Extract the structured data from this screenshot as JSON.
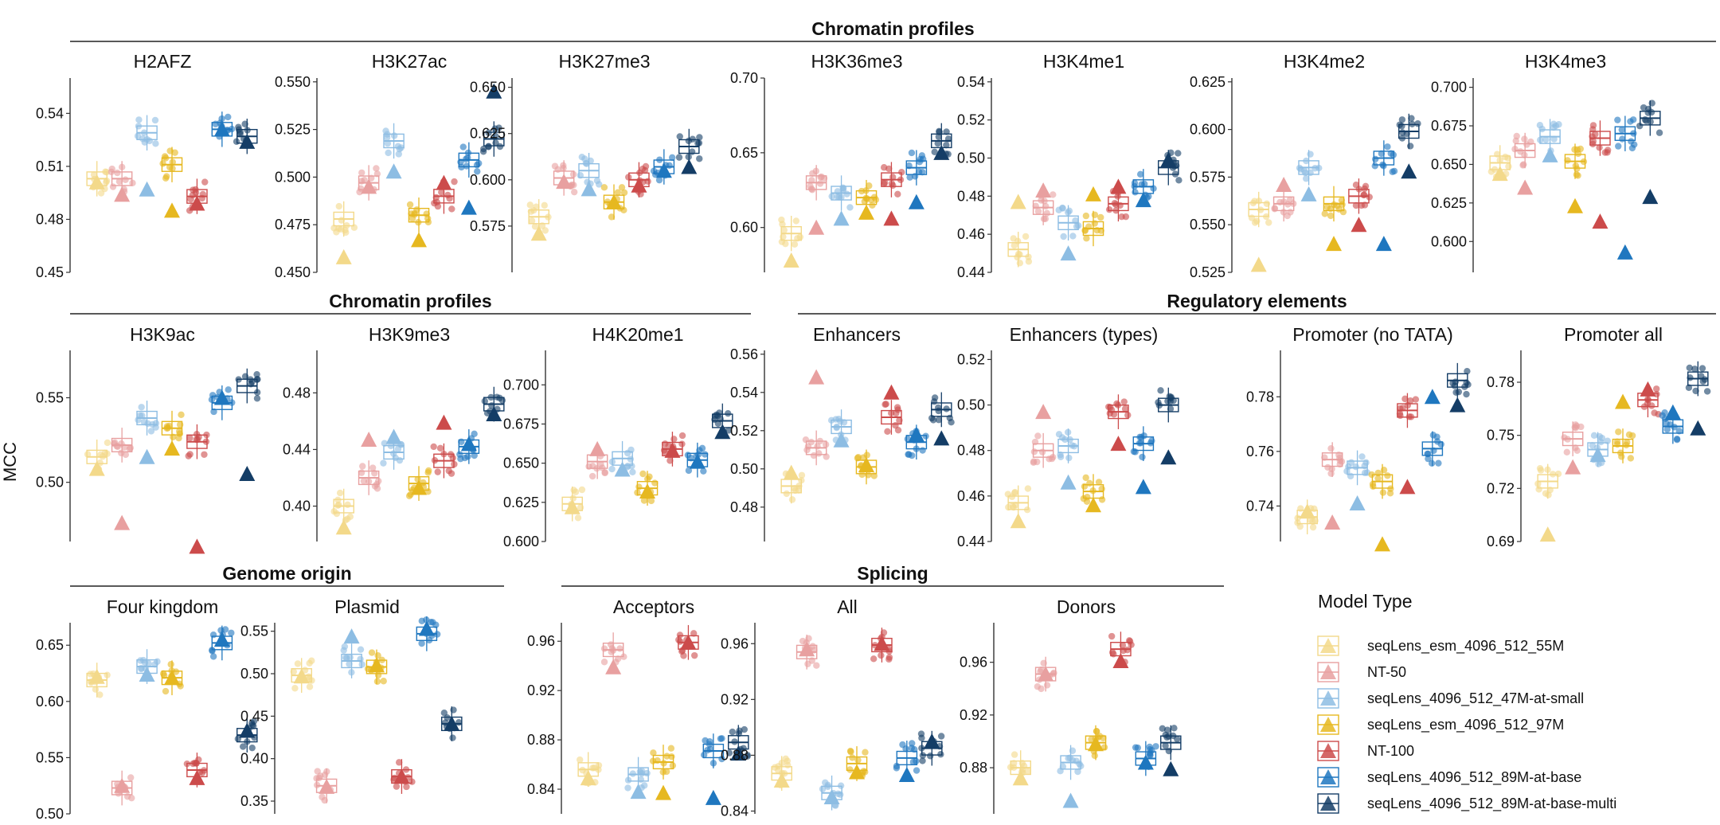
{
  "ylabel": "MCC",
  "legend": {
    "title": "Model Type",
    "items": [
      {
        "label": "seqLens_esm_4096_512_55M",
        "color": "#F3D98A"
      },
      {
        "label": "NT-50",
        "color": "#E8A0A0"
      },
      {
        "label": "seqLens_4096_512_47M-at-small",
        "color": "#8DBDE3"
      },
      {
        "label": "seqLens_esm_4096_512_97M",
        "color": "#E6B820"
      },
      {
        "label": "NT-100",
        "color": "#CC4B4B"
      },
      {
        "label": "seqLens_4096_512_89M-at-base",
        "color": "#1F77BF"
      },
      {
        "label": "seqLens_4096_512_89M-at-base-multi",
        "color": "#143D66"
      }
    ]
  },
  "groups": [
    {
      "label": "Chromatin profiles",
      "row": 0
    },
    {
      "label": "Chromatin profiles",
      "row": 1
    },
    {
      "label": "Regulatory elements",
      "row": 1
    },
    {
      "label": "Genome origin",
      "row": 2
    },
    {
      "label": "Splicing",
      "row": 2
    }
  ],
  "chart_data": {
    "type": "box",
    "panels": [
      {
        "name": "H2AFZ",
        "yticks": [
          "0.45",
          "0.48",
          "0.51",
          "0.54"
        ],
        "ylim": [
          0.45,
          0.56
        ],
        "values": [
          0.503,
          0.503,
          0.529,
          0.511,
          0.493,
          0.531,
          0.527
        ],
        "markers": [
          0.501,
          0.494,
          0.497,
          0.485,
          0.489,
          0.531,
          0.524
        ]
      },
      {
        "name": "H3K27ac",
        "yticks": [
          "0.450",
          "0.475",
          "0.500",
          "0.525",
          "0.550"
        ],
        "ylim": [
          0.45,
          0.552
        ],
        "values": [
          0.478,
          0.497,
          0.519,
          0.48,
          0.49,
          0.509,
          0.52
        ],
        "markers": [
          0.458,
          0.495,
          0.503,
          0.467,
          0.497,
          0.484,
          0.545
        ]
      },
      {
        "name": "H3K27me3",
        "yticks": [
          "0.575",
          "0.600",
          "0.625",
          "0.650"
        ],
        "ylim": [
          0.55,
          0.655
        ],
        "values": [
          0.58,
          0.601,
          0.605,
          0.588,
          0.6,
          0.607,
          0.618
        ],
        "markers": [
          0.571,
          0.599,
          0.595,
          0.588,
          0.597,
          0.605,
          0.607
        ]
      },
      {
        "name": "H3K36me3",
        "yticks": [
          "0.60",
          "0.65",
          "0.70"
        ],
        "ylim": [
          0.57,
          0.7
        ],
        "values": [
          0.596,
          0.63,
          0.623,
          0.62,
          0.632,
          0.64,
          0.658
        ],
        "markers": [
          0.578,
          0.6,
          0.606,
          0.61,
          0.606,
          0.617,
          0.65
        ]
      },
      {
        "name": "H3K4me1",
        "yticks": [
          "0.44",
          "0.46",
          "0.48",
          "0.50",
          "0.52",
          "0.54"
        ],
        "ylim": [
          0.44,
          0.542
        ],
        "values": [
          0.452,
          0.474,
          0.466,
          0.463,
          0.476,
          0.485,
          0.495
        ],
        "markers": [
          0.477,
          0.483,
          0.45,
          0.481,
          0.485,
          0.478,
          0.499
        ]
      },
      {
        "name": "H3K4me2",
        "yticks": [
          "0.525",
          "0.550",
          "0.575",
          "0.600",
          "0.625"
        ],
        "ylim": [
          0.525,
          0.627
        ],
        "values": [
          0.558,
          0.561,
          0.58,
          0.561,
          0.565,
          0.585,
          0.599
        ],
        "markers": [
          0.529,
          0.571,
          0.566,
          0.54,
          0.55,
          0.54,
          0.578
        ]
      },
      {
        "name": "H3K4me3",
        "yticks": [
          "0.600",
          "0.625",
          "0.650",
          "0.675",
          "0.700"
        ],
        "ylim": [
          0.58,
          0.706
        ],
        "values": [
          0.651,
          0.659,
          0.668,
          0.652,
          0.667,
          0.67,
          0.68
        ],
        "markers": [
          0.644,
          0.635,
          0.656,
          0.623,
          0.613,
          0.593,
          0.629
        ]
      },
      {
        "name": "H3K9ac",
        "yticks": [
          "0.50",
          "0.55"
        ],
        "ylim": [
          0.465,
          0.578
        ],
        "values": [
          0.515,
          0.522,
          0.538,
          0.532,
          0.524,
          0.547,
          0.557
        ],
        "markers": [
          0.508,
          0.476,
          0.515,
          0.52,
          0.462,
          0.55,
          0.505
        ]
      },
      {
        "name": "H3K9me3",
        "yticks": [
          "0.40",
          "0.44",
          "0.48"
        ],
        "ylim": [
          0.375,
          0.51
        ],
        "values": [
          0.4,
          0.42,
          0.438,
          0.416,
          0.432,
          0.442,
          0.472
        ],
        "markers": [
          0.385,
          0.447,
          0.449,
          0.413,
          0.459,
          0.444,
          0.465
        ]
      },
      {
        "name": "H4K20me1",
        "yticks": [
          "0.600",
          "0.625",
          "0.650",
          "0.675",
          "0.700"
        ],
        "ylim": [
          0.6,
          0.722
        ],
        "values": [
          0.624,
          0.651,
          0.653,
          0.634,
          0.659,
          0.652,
          0.677
        ],
        "markers": [
          0.622,
          0.659,
          0.646,
          0.632,
          0.658,
          0.651,
          0.67
        ]
      },
      {
        "name": "Enhancers",
        "yticks": [
          "0.48",
          "0.50",
          "0.52",
          "0.54",
          "0.56"
        ],
        "ylim": [
          0.462,
          0.562
        ],
        "values": [
          0.491,
          0.511,
          0.522,
          0.501,
          0.527,
          0.514,
          0.531
        ],
        "markers": [
          0.498,
          0.548,
          0.515,
          0.502,
          0.54,
          0.518,
          0.516
        ]
      },
      {
        "name": "Enhancers (types)",
        "yticks": [
          "0.44",
          "0.46",
          "0.48",
          "0.50",
          "0.52"
        ],
        "ylim": [
          0.44,
          0.524
        ],
        "values": [
          0.457,
          0.48,
          0.482,
          0.462,
          0.497,
          0.483,
          0.5
        ],
        "markers": [
          0.449,
          0.497,
          0.466,
          0.456,
          0.483,
          0.464,
          0.477
        ]
      },
      {
        "name": "Promoter (no TATA)",
        "yticks": [
          "0.74",
          "0.76",
          "0.78"
        ],
        "ylim": [
          0.727,
          0.797
        ],
        "values": [
          0.736,
          0.757,
          0.754,
          0.749,
          0.775,
          0.761,
          0.786
        ],
        "markers": [
          0.738,
          0.734,
          0.741,
          0.726,
          0.747,
          0.78,
          0.777
        ]
      },
      {
        "name": "Promoter all",
        "yticks": [
          "0.69",
          "0.72",
          "0.75",
          "0.78"
        ],
        "ylim": [
          0.69,
          0.798
        ],
        "values": [
          0.724,
          0.748,
          0.742,
          0.744,
          0.77,
          0.755,
          0.782
        ],
        "markers": [
          0.694,
          0.732,
          0.739,
          0.769,
          0.776,
          0.763,
          0.754
        ]
      },
      {
        "name": "Four kingdom",
        "yticks": [
          "0.50",
          "0.55",
          "0.60",
          "0.65"
        ],
        "ylim": [
          0.5,
          0.67
        ],
        "values": [
          0.619,
          0.523,
          0.631,
          0.621,
          0.539,
          0.652,
          0.57
        ],
        "markers": [
          0.622,
          0.525,
          0.624,
          0.621,
          0.532,
          0.655,
          0.574
        ]
      },
      {
        "name": "Plasmid",
        "yticks": [
          "0.35",
          "0.40",
          "0.45",
          "0.50",
          "0.55"
        ],
        "ylim": [
          0.335,
          0.56
        ],
        "values": [
          0.498,
          0.368,
          0.515,
          0.508,
          0.379,
          0.547,
          0.441
        ],
        "markers": [
          0.497,
          0.367,
          0.544,
          0.51,
          0.379,
          0.553,
          0.441
        ]
      },
      {
        "name": "Acceptors",
        "yticks": [
          "0.84",
          "0.88",
          "0.92",
          "0.96"
        ],
        "ylim": [
          0.82,
          0.975
        ],
        "values": [
          0.856,
          0.953,
          0.852,
          0.862,
          0.959,
          0.871,
          0.878
        ],
        "markers": [
          0.849,
          0.939,
          0.838,
          0.837,
          0.959,
          0.833,
          0.869
        ]
      },
      {
        "name": "All",
        "yticks": [
          "0.84",
          "0.88",
          "0.92",
          "0.96"
        ],
        "ylim": [
          0.838,
          0.975
        ],
        "values": [
          0.867,
          0.954,
          0.853,
          0.874,
          0.959,
          0.878,
          0.885
        ],
        "markers": [
          0.862,
          0.956,
          0.85,
          0.868,
          0.96,
          0.866,
          0.89
        ]
      },
      {
        "name": "Donors",
        "yticks": [
          "0.88",
          "0.92",
          "0.96"
        ],
        "ylim": [
          0.845,
          0.99
        ],
        "values": [
          0.88,
          0.951,
          0.884,
          0.899,
          0.97,
          0.887,
          0.899
        ],
        "markers": [
          0.872,
          0.951,
          0.855,
          0.898,
          0.961,
          0.884,
          0.879
        ]
      }
    ]
  }
}
